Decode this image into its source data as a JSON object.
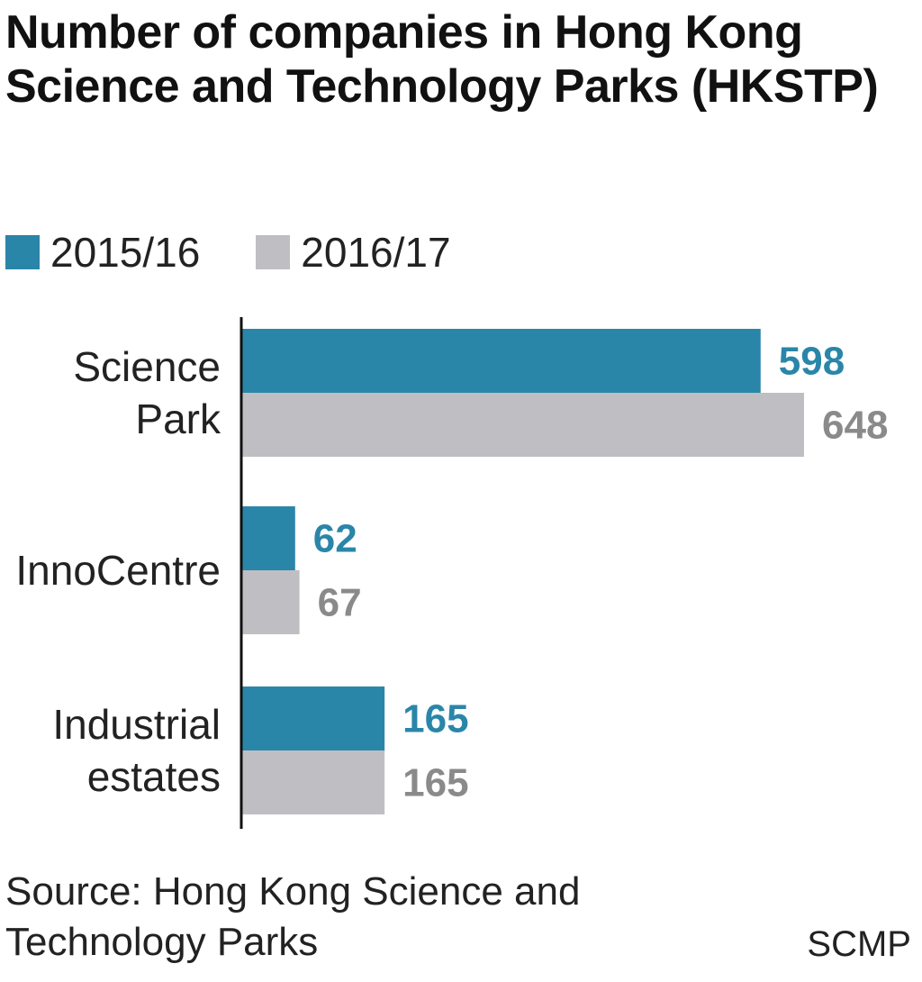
{
  "title": "Number of companies in Hong Kong Science and Technology Parks (HKSTP)",
  "colors": {
    "series_2015_16": "#2a86a8",
    "series_2016_17": "#bfbfc3",
    "label_2016_17": "#8a8a8a",
    "axis": "#111111",
    "text": "#222222"
  },
  "chart_data": {
    "type": "bar",
    "orientation": "horizontal",
    "categories": [
      "Science\nPark",
      "InnoCentre",
      "Industrial\nestates"
    ],
    "series": [
      {
        "name": "2015/16",
        "values": [
          598,
          62,
          165
        ]
      },
      {
        "name": "2016/17",
        "values": [
          648,
          67,
          165
        ]
      }
    ],
    "title": "Number of companies in Hong Kong Science and Technology Parks (HKSTP)",
    "legend": "top-left",
    "grid": false,
    "xlim": [
      0,
      648
    ]
  },
  "source": "Source: Hong Kong Science and Technology Parks",
  "credit": "SCMP"
}
